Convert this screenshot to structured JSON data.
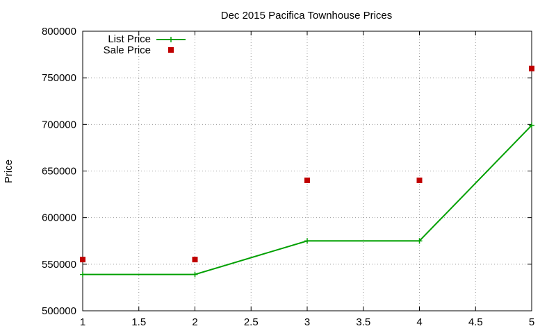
{
  "chart_data": {
    "type": "line",
    "title": "Dec 2015 Pacifica Townhouse Prices",
    "xlabel": "",
    "ylabel": "Price",
    "xlim": [
      1,
      5
    ],
    "ylim": [
      500000,
      800000
    ],
    "x_ticks": [
      "1",
      "1.5",
      "2",
      "2.5",
      "3",
      "3.5",
      "4",
      "4.5",
      "5"
    ],
    "y_ticks": [
      "500000",
      "550000",
      "600000",
      "650000",
      "700000",
      "750000",
      "800000"
    ],
    "grid": true,
    "legend_position": "top-left",
    "series": [
      {
        "name": "List Price",
        "style": "line with plus markers",
        "color": "#00a000",
        "x": [
          1,
          2,
          3,
          4,
          5
        ],
        "values": [
          539000,
          539000,
          575000,
          575000,
          699000
        ]
      },
      {
        "name": "Sale Price",
        "style": "square markers",
        "color": "#c00000",
        "x": [
          1,
          2,
          3,
          4,
          5
        ],
        "values": [
          555000,
          555000,
          640000,
          640000,
          760000
        ]
      }
    ]
  }
}
